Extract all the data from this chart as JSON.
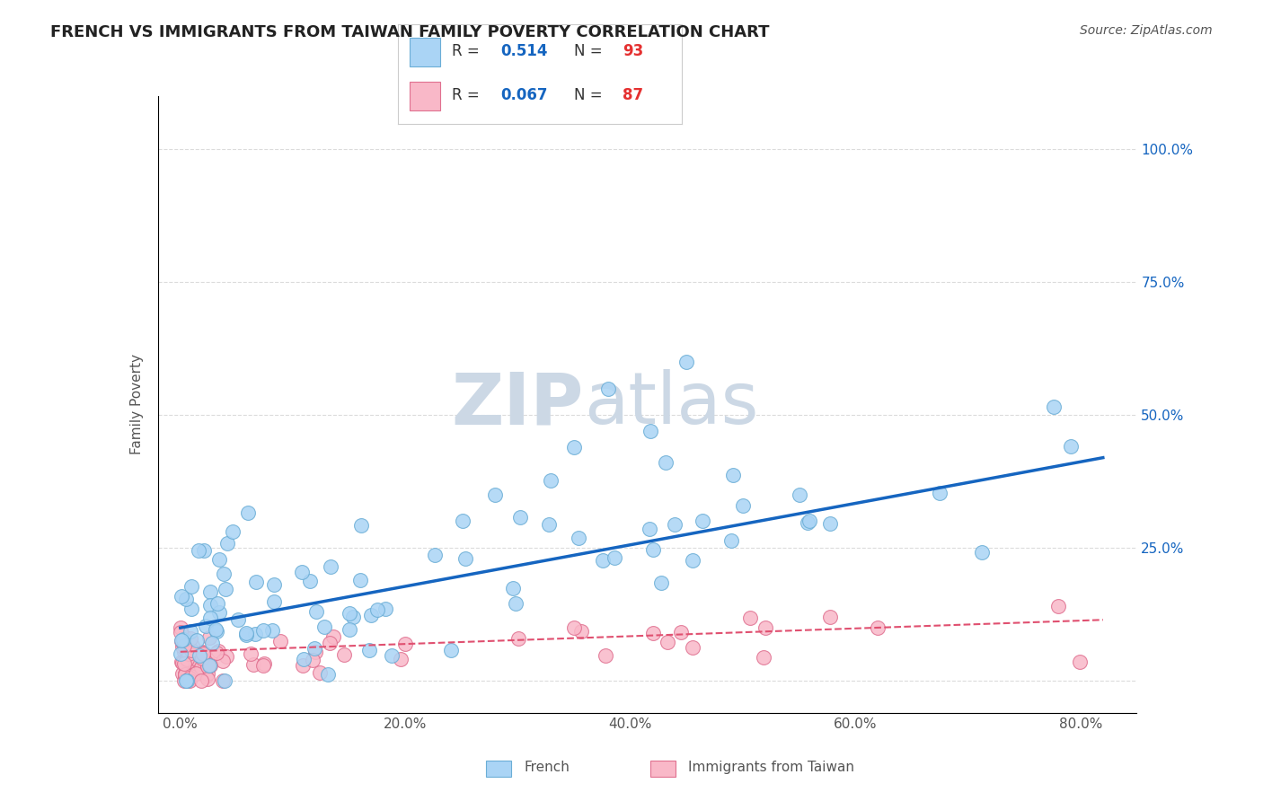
{
  "title": "FRENCH VS IMMIGRANTS FROM TAIWAN FAMILY POVERTY CORRELATION CHART",
  "source": "Source: ZipAtlas.com",
  "ylabel": "Family Poverty",
  "french_R": 0.514,
  "french_N": 93,
  "taiwan_R": 0.067,
  "taiwan_N": 87,
  "french_color": "#aad4f5",
  "french_edge": "#6baed6",
  "taiwan_color": "#f9b8c8",
  "taiwan_edge": "#e07090",
  "trendline_french_color": "#1565C0",
  "trendline_taiwan_color": "#e05070",
  "watermark_zip_color": "#ccd8e5",
  "watermark_atlas_color": "#ccd8e5",
  "legend_R_color": "#1565C0",
  "legend_N_color": "#e53030",
  "background_color": "#ffffff",
  "grid_color": "#cccccc",
  "title_color": "#222222",
  "right_tick_color": "#1565C0"
}
